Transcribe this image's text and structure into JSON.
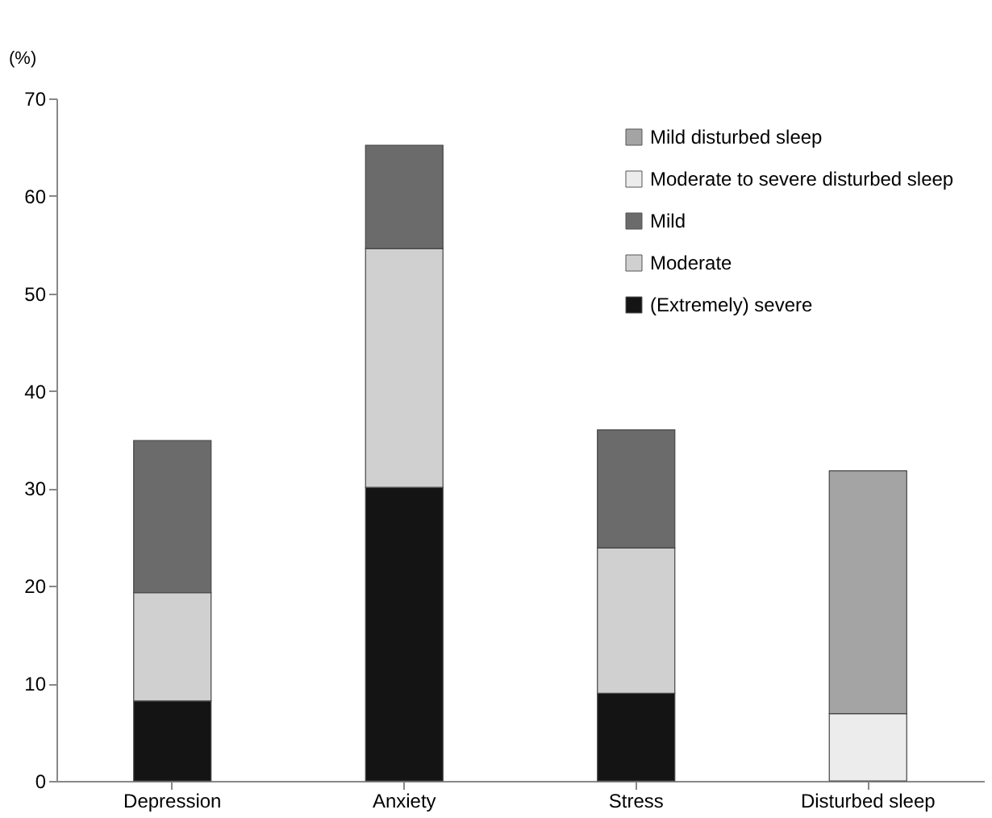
{
  "chart_data": {
    "type": "bar",
    "stacked": true,
    "ylabel": "(%)",
    "categories": [
      "Depression",
      "Anxiety",
      "Stress",
      "Disturbed sleep"
    ],
    "series": [
      {
        "name": "(Extremely) severe",
        "color": "#141414",
        "values": [
          8.2,
          30.1,
          9.0,
          null
        ]
      },
      {
        "name": "Moderate",
        "color": "#d0d0d0",
        "values": [
          11.1,
          24.5,
          14.9,
          null
        ]
      },
      {
        "name": "Mild",
        "color": "#6b6b6b",
        "values": [
          15.6,
          10.6,
          12.1,
          null
        ]
      },
      {
        "name": "Moderate to severe disturbed sleep",
        "color": "#ececec",
        "values": [
          null,
          null,
          null,
          6.9
        ]
      },
      {
        "name": "Mild disturbed sleep",
        "color": "#a4a4a4",
        "values": [
          null,
          null,
          null,
          24.9
        ]
      }
    ],
    "ylim": [
      0,
      70
    ],
    "yticks": [
      0,
      10,
      20,
      30,
      40,
      50,
      60,
      70
    ],
    "grid": false,
    "legend": "top right"
  }
}
